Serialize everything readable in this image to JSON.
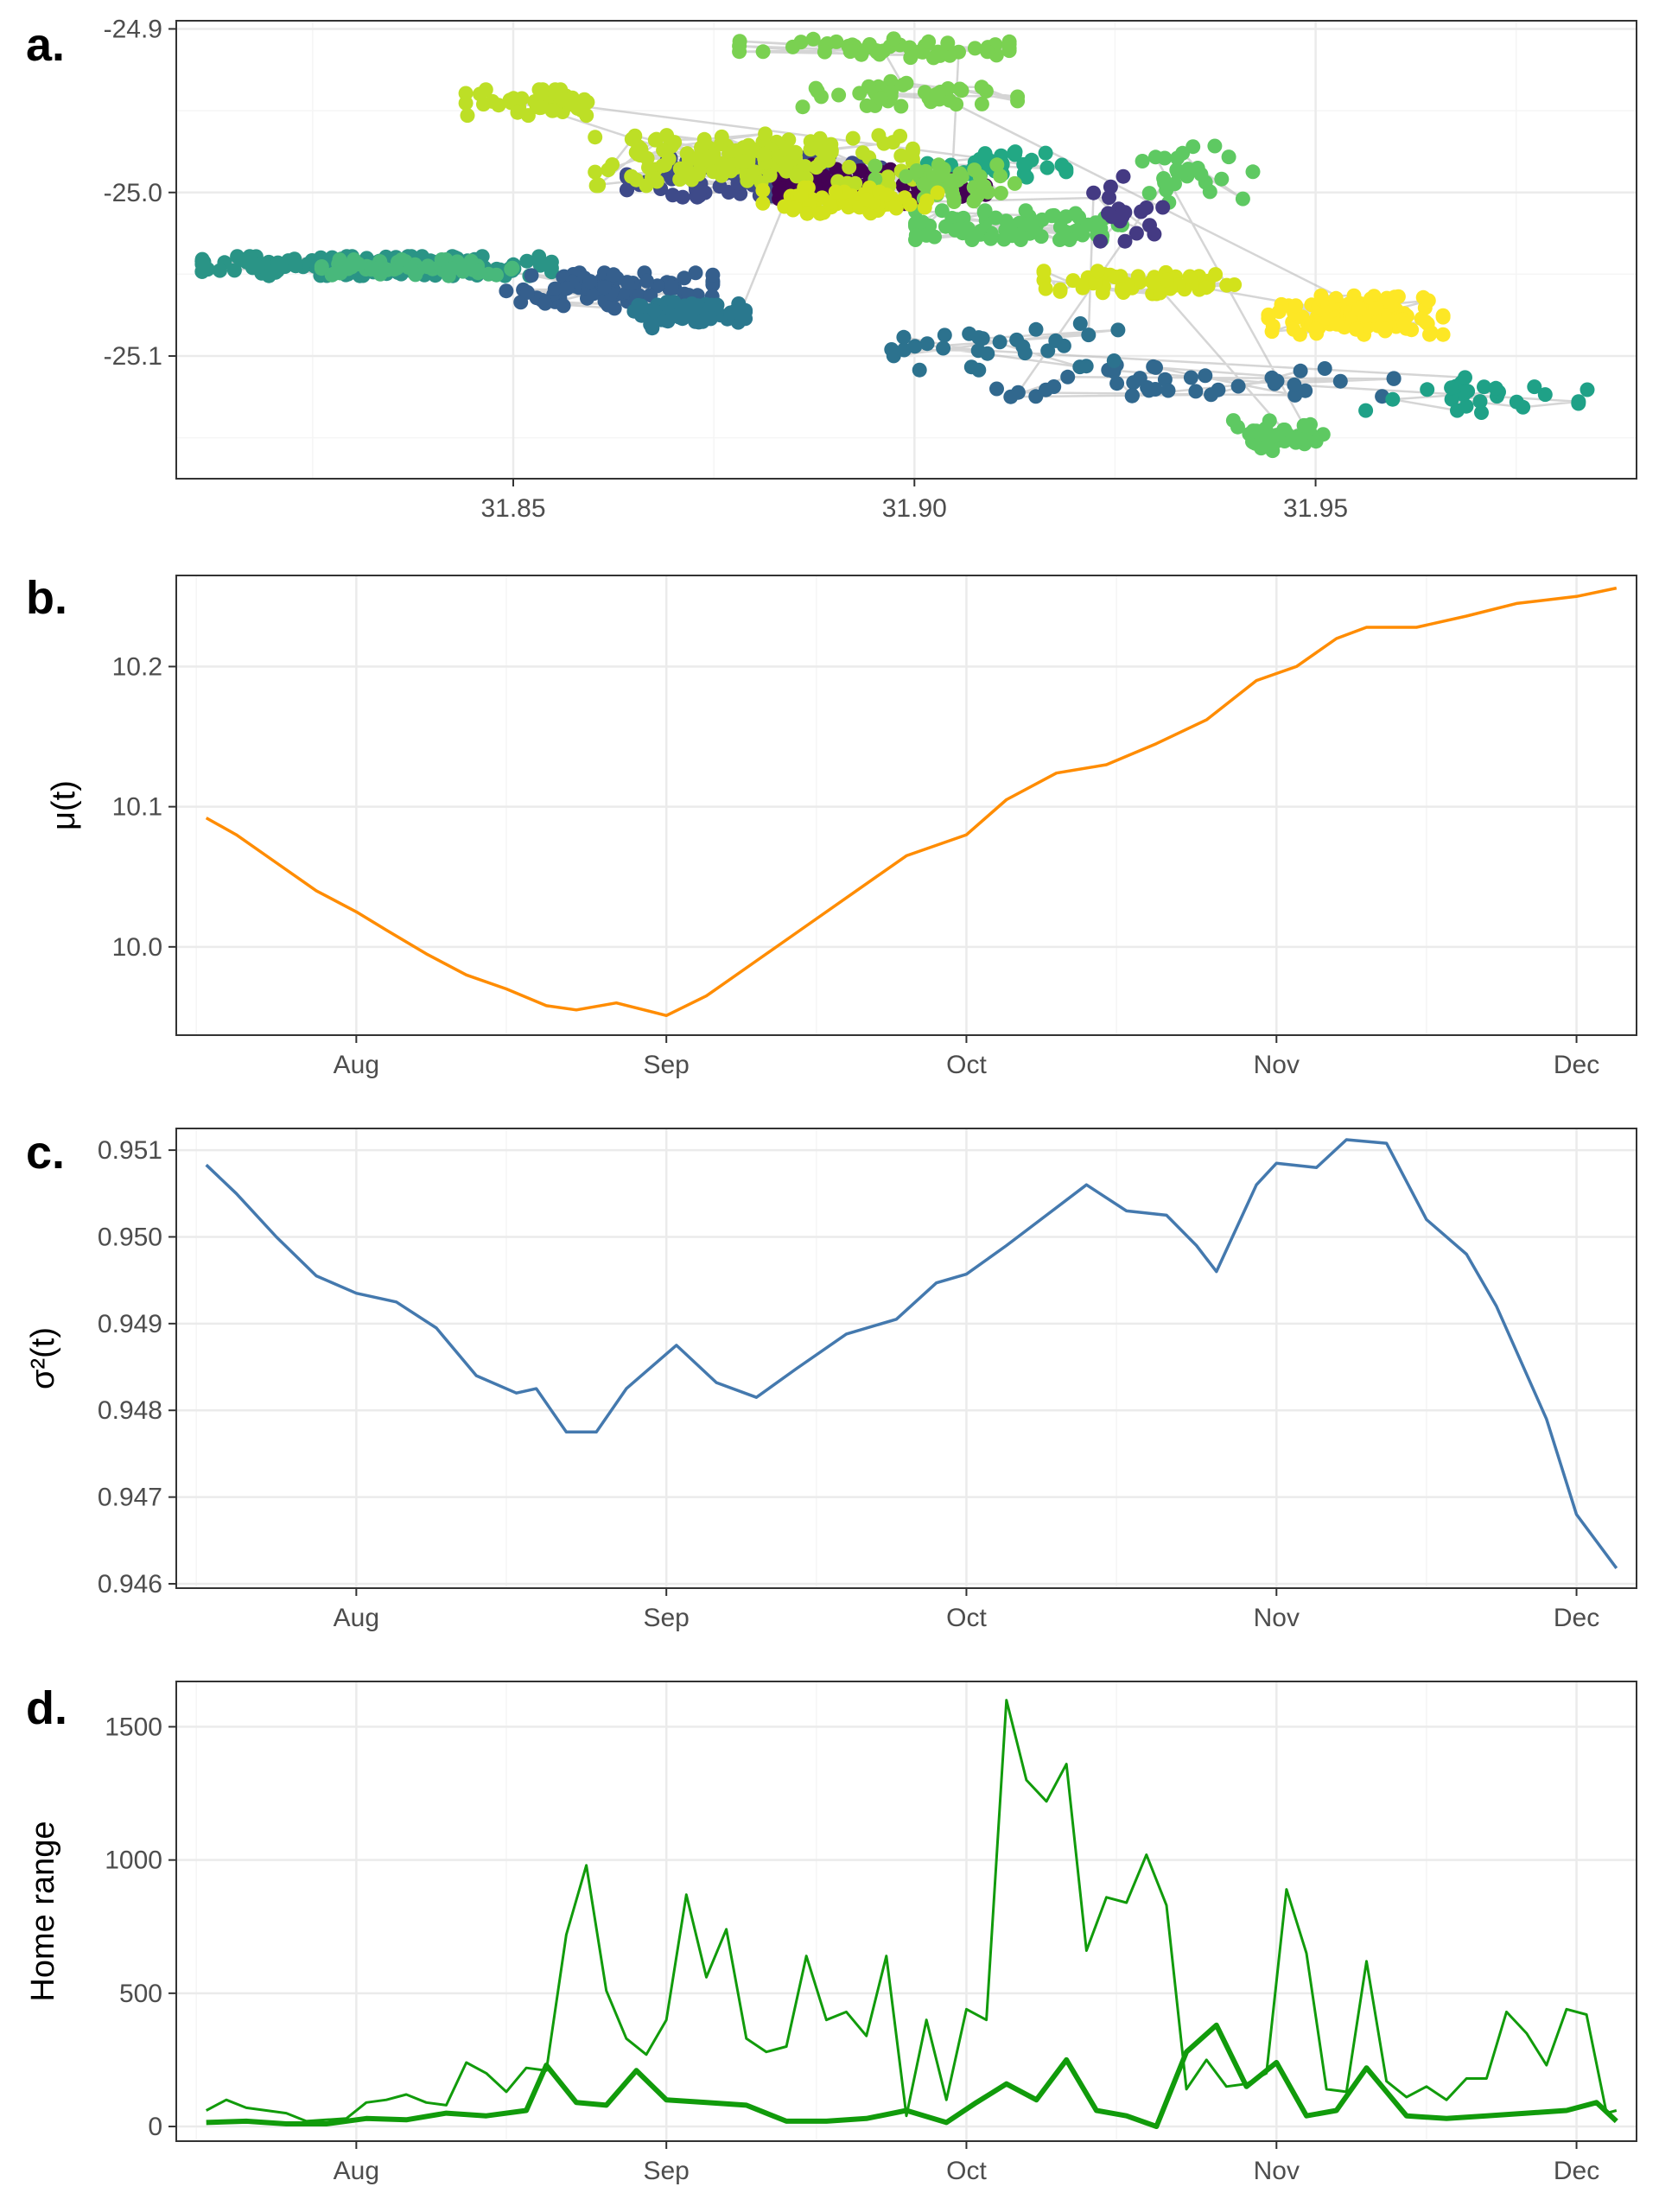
{
  "chart_data": [
    {
      "panel": "a.",
      "type": "scatter",
      "xlabel": "",
      "ylabel": "",
      "xlim": [
        31.808,
        31.99
      ],
      "ylim": [
        -25.175,
        -24.895
      ],
      "x_ticks": [
        {
          "v": 31.85,
          "t": "31.85"
        },
        {
          "v": 31.9,
          "t": "31.90"
        },
        {
          "v": 31.95,
          "t": "31.95"
        }
      ],
      "y_ticks": [
        {
          "v": -24.9,
          "t": "-24.9"
        },
        {
          "v": -25.0,
          "t": "-25.0"
        },
        {
          "v": -25.1,
          "t": "-25.1"
        }
      ],
      "path_color": "#b3b3b3",
      "grid": true,
      "clusters": [
        {
          "cx": 31.833,
          "cy": -25.045,
          "rx": 0.022,
          "ry": 0.006,
          "n": 170,
          "color": "#2a9486"
        },
        {
          "cx": 31.838,
          "cy": -25.046,
          "rx": 0.012,
          "ry": 0.005,
          "n": 60,
          "color": "#48b87b"
        },
        {
          "cx": 31.862,
          "cy": -25.06,
          "rx": 0.013,
          "ry": 0.011,
          "n": 90,
          "color": "#355f8d"
        },
        {
          "cx": 31.872,
          "cy": -25.075,
          "rx": 0.007,
          "ry": 0.008,
          "n": 60,
          "color": "#2a788e"
        },
        {
          "cx": 31.88,
          "cy": -24.99,
          "rx": 0.016,
          "ry": 0.013,
          "n": 110,
          "color": "#3e4a89"
        },
        {
          "cx": 31.896,
          "cy": -24.995,
          "rx": 0.013,
          "ry": 0.012,
          "n": 70,
          "color": "#440154"
        },
        {
          "cx": 31.88,
          "cy": -24.98,
          "rx": 0.02,
          "ry": 0.016,
          "n": 150,
          "color": "#bddf26"
        },
        {
          "cx": 31.853,
          "cy": -24.945,
          "rx": 0.009,
          "ry": 0.008,
          "n": 50,
          "color": "#bddf26"
        },
        {
          "cx": 31.91,
          "cy": -24.985,
          "rx": 0.009,
          "ry": 0.01,
          "n": 50,
          "color": "#22a884"
        },
        {
          "cx": 31.913,
          "cy": -25.02,
          "rx": 0.013,
          "ry": 0.009,
          "n": 80,
          "color": "#5ec962"
        },
        {
          "cx": 31.905,
          "cy": -24.995,
          "rx": 0.01,
          "ry": 0.012,
          "n": 40,
          "color": "#7ad151"
        },
        {
          "cx": 31.895,
          "cy": -24.912,
          "rx": 0.017,
          "ry": 0.006,
          "n": 50,
          "color": "#7ad151"
        },
        {
          "cx": 31.898,
          "cy": -24.94,
          "rx": 0.015,
          "ry": 0.008,
          "n": 40,
          "color": "#7ad151"
        },
        {
          "cx": 31.955,
          "cy": -25.075,
          "rx": 0.011,
          "ry": 0.012,
          "n": 110,
          "color": "#fde725"
        },
        {
          "cx": 31.928,
          "cy": -25.055,
          "rx": 0.012,
          "ry": 0.007,
          "n": 55,
          "color": "#d2e21b"
        },
        {
          "cx": 31.945,
          "cy": -25.148,
          "rx": 0.006,
          "ry": 0.01,
          "n": 35,
          "color": "#5ec962"
        },
        {
          "cx": 31.935,
          "cy": -24.99,
          "rx": 0.008,
          "ry": 0.02,
          "n": 25,
          "color": "#5ec962"
        },
        {
          "cx": 31.935,
          "cy": -25.115,
          "rx": 0.025,
          "ry": 0.01,
          "n": 40,
          "color": "#31688e"
        },
        {
          "cx": 31.97,
          "cy": -25.125,
          "rx": 0.014,
          "ry": 0.012,
          "n": 25,
          "color": "#1fa187"
        },
        {
          "cx": 31.912,
          "cy": -25.095,
          "rx": 0.015,
          "ry": 0.015,
          "n": 30,
          "color": "#2c728e"
        },
        {
          "cx": 31.926,
          "cy": -25.01,
          "rx": 0.005,
          "ry": 0.02,
          "n": 20,
          "color": "#443a83"
        },
        {
          "cx": 31.892,
          "cy": -25.005,
          "rx": 0.011,
          "ry": 0.008,
          "n": 60,
          "color": "#d2e21b"
        }
      ]
    },
    {
      "panel": "b.",
      "type": "line",
      "ylabel": "μ(t)",
      "color": "#ff8c00",
      "x_ticks": [
        "Aug",
        "Sep",
        "Oct",
        "Nov",
        "Dec"
      ],
      "y_ticks": [
        {
          "v": 10.0,
          "t": "10.0"
        },
        {
          "v": 10.1,
          "t": "10.1"
        },
        {
          "v": 10.2,
          "t": "10.2"
        }
      ],
      "xlim": [
        "2019-07-14",
        "2019-12-07"
      ],
      "ylim": [
        9.937,
        10.265
      ],
      "x": [
        "2019-07-17",
        "2019-07-20",
        "2019-07-24",
        "2019-07-28",
        "2019-08-01",
        "2019-08-04",
        "2019-08-08",
        "2019-08-12",
        "2019-08-16",
        "2019-08-20",
        "2019-08-23",
        "2019-08-27",
        "2019-09-01",
        "2019-09-05",
        "2019-09-10",
        "2019-09-15",
        "2019-09-20",
        "2019-09-25",
        "2019-10-01",
        "2019-10-05",
        "2019-10-10",
        "2019-10-15",
        "2019-10-20",
        "2019-10-25",
        "2019-10-30",
        "2019-11-03",
        "2019-11-07",
        "2019-11-10",
        "2019-11-15",
        "2019-11-20",
        "2019-11-25",
        "2019-12-01",
        "2019-12-05"
      ],
      "values": [
        10.092,
        10.08,
        10.06,
        10.04,
        10.025,
        10.012,
        9.995,
        9.98,
        9.97,
        9.958,
        9.955,
        9.96,
        9.951,
        9.965,
        9.99,
        10.015,
        10.04,
        10.065,
        10.08,
        10.105,
        10.124,
        10.13,
        10.145,
        10.162,
        10.19,
        10.2,
        10.22,
        10.228,
        10.228,
        10.236,
        10.245,
        10.25,
        10.256
      ]
    },
    {
      "panel": "c.",
      "type": "line",
      "ylabel": "σ²(t)",
      "color": "#4479ae",
      "x_ticks": [
        "Aug",
        "Sep",
        "Oct",
        "Nov",
        "Dec"
      ],
      "y_ticks": [
        {
          "v": 0.946,
          "t": "0.946"
        },
        {
          "v": 0.947,
          "t": "0.947"
        },
        {
          "v": 0.948,
          "t": "0.948"
        },
        {
          "v": 0.949,
          "t": "0.949"
        },
        {
          "v": 0.95,
          "t": "0.950"
        },
        {
          "v": 0.951,
          "t": "0.951"
        }
      ],
      "xlim": [
        "2019-07-14",
        "2019-12-07"
      ],
      "ylim": [
        0.94595,
        0.95125
      ],
      "x": [
        "2019-07-17",
        "2019-07-20",
        "2019-07-24",
        "2019-07-28",
        "2019-08-01",
        "2019-08-05",
        "2019-08-09",
        "2019-08-13",
        "2019-08-17",
        "2019-08-19",
        "2019-08-22",
        "2019-08-25",
        "2019-08-28",
        "2019-09-02",
        "2019-09-06",
        "2019-09-10",
        "2019-09-14",
        "2019-09-19",
        "2019-09-24",
        "2019-09-28",
        "2019-10-01",
        "2019-10-05",
        "2019-10-09",
        "2019-10-13",
        "2019-10-17",
        "2019-10-21",
        "2019-10-24",
        "2019-10-26",
        "2019-10-30",
        "2019-11-01",
        "2019-11-05",
        "2019-11-08",
        "2019-11-12",
        "2019-11-16",
        "2019-11-20",
        "2019-11-23",
        "2019-11-28",
        "2019-12-01",
        "2019-12-05"
      ],
      "values": [
        0.95083,
        0.9505,
        0.95,
        0.94955,
        0.94935,
        0.94925,
        0.94895,
        0.9484,
        0.9482,
        0.94825,
        0.94775,
        0.94775,
        0.94825,
        0.94875,
        0.94832,
        0.94815,
        0.94848,
        0.94888,
        0.94905,
        0.94947,
        0.94957,
        0.9499,
        0.95025,
        0.9506,
        0.9503,
        0.95025,
        0.9499,
        0.9496,
        0.9506,
        0.95085,
        0.9508,
        0.95112,
        0.95108,
        0.9502,
        0.9498,
        0.9492,
        0.9479,
        0.9468,
        0.94618
      ]
    },
    {
      "panel": "d.",
      "type": "line",
      "ylabel": "Home range",
      "color": "#119b0b",
      "x_ticks": [
        "Aug",
        "Sep",
        "Oct",
        "Nov",
        "Dec"
      ],
      "y_ticks": [
        {
          "v": 0,
          "t": "0"
        },
        {
          "v": 500,
          "t": "500"
        },
        {
          "v": 1000,
          "t": "1000"
        },
        {
          "v": 1500,
          "t": "1500"
        }
      ],
      "xlim": [
        "2019-07-14",
        "2019-12-07"
      ],
      "ylim": [
        -55,
        1670
      ],
      "series": [
        {
          "line_width": 3,
          "x": [
            "2019-07-17",
            "2019-07-19",
            "2019-07-21",
            "2019-07-23",
            "2019-07-25",
            "2019-07-27",
            "2019-07-29",
            "2019-07-31",
            "2019-08-02",
            "2019-08-04",
            "2019-08-06",
            "2019-08-08",
            "2019-08-10",
            "2019-08-12",
            "2019-08-14",
            "2019-08-16",
            "2019-08-18",
            "2019-08-20",
            "2019-08-22",
            "2019-08-24",
            "2019-08-26",
            "2019-08-28",
            "2019-08-30",
            "2019-09-01",
            "2019-09-03",
            "2019-09-05",
            "2019-09-07",
            "2019-09-09",
            "2019-09-11",
            "2019-09-13",
            "2019-09-15",
            "2019-09-17",
            "2019-09-19",
            "2019-09-21",
            "2019-09-23",
            "2019-09-25",
            "2019-09-27",
            "2019-09-29",
            "2019-10-01",
            "2019-10-03",
            "2019-10-05",
            "2019-10-07",
            "2019-10-09",
            "2019-10-11",
            "2019-10-13",
            "2019-10-15",
            "2019-10-17",
            "2019-10-19",
            "2019-10-21",
            "2019-10-23",
            "2019-10-25",
            "2019-10-27",
            "2019-10-29",
            "2019-10-31",
            "2019-11-02",
            "2019-11-04",
            "2019-11-06",
            "2019-11-08",
            "2019-11-10",
            "2019-11-12",
            "2019-11-14",
            "2019-11-16",
            "2019-11-18",
            "2019-11-20",
            "2019-11-22",
            "2019-11-24",
            "2019-11-26",
            "2019-11-28",
            "2019-11-30",
            "2019-12-02",
            "2019-12-04",
            "2019-12-05"
          ],
          "values": [
            60,
            100,
            70,
            60,
            50,
            20,
            25,
            30,
            90,
            100,
            120,
            90,
            80,
            240,
            200,
            130,
            220,
            210,
            720,
            980,
            510,
            330,
            270,
            400,
            870,
            560,
            740,
            330,
            280,
            300,
            640,
            400,
            430,
            340,
            640,
            40,
            400,
            100,
            440,
            400,
            1600,
            1300,
            1220,
            1360,
            660,
            860,
            840,
            1020,
            830,
            140,
            250,
            150,
            160,
            200,
            890,
            650,
            140,
            130,
            620,
            170,
            110,
            150,
            100,
            180,
            180,
            430,
            350,
            230,
            440,
            420,
            50,
            60
          ]
        },
        {
          "line_width": 6,
          "x": [
            "2019-07-17",
            "2019-07-21",
            "2019-07-25",
            "2019-07-29",
            "2019-08-02",
            "2019-08-06",
            "2019-08-10",
            "2019-08-14",
            "2019-08-18",
            "2019-08-20",
            "2019-08-23",
            "2019-08-26",
            "2019-08-29",
            "2019-09-01",
            "2019-09-05",
            "2019-09-09",
            "2019-09-13",
            "2019-09-17",
            "2019-09-21",
            "2019-09-25",
            "2019-09-29",
            "2019-10-02",
            "2019-10-05",
            "2019-10-08",
            "2019-10-11",
            "2019-10-14",
            "2019-10-17",
            "2019-10-20",
            "2019-10-23",
            "2019-10-26",
            "2019-10-29",
            "2019-11-01",
            "2019-11-04",
            "2019-11-07",
            "2019-11-10",
            "2019-11-14",
            "2019-11-18",
            "2019-11-22",
            "2019-11-26",
            "2019-11-30",
            "2019-12-03",
            "2019-12-05"
          ],
          "values": [
            15,
            20,
            10,
            10,
            30,
            25,
            50,
            40,
            60,
            230,
            90,
            80,
            210,
            100,
            90,
            80,
            20,
            20,
            30,
            60,
            15,
            90,
            160,
            100,
            250,
            60,
            40,
            0,
            280,
            380,
            150,
            240,
            40,
            60,
            220,
            40,
            30,
            40,
            50,
            60,
            90,
            20
          ]
        }
      ]
    }
  ]
}
